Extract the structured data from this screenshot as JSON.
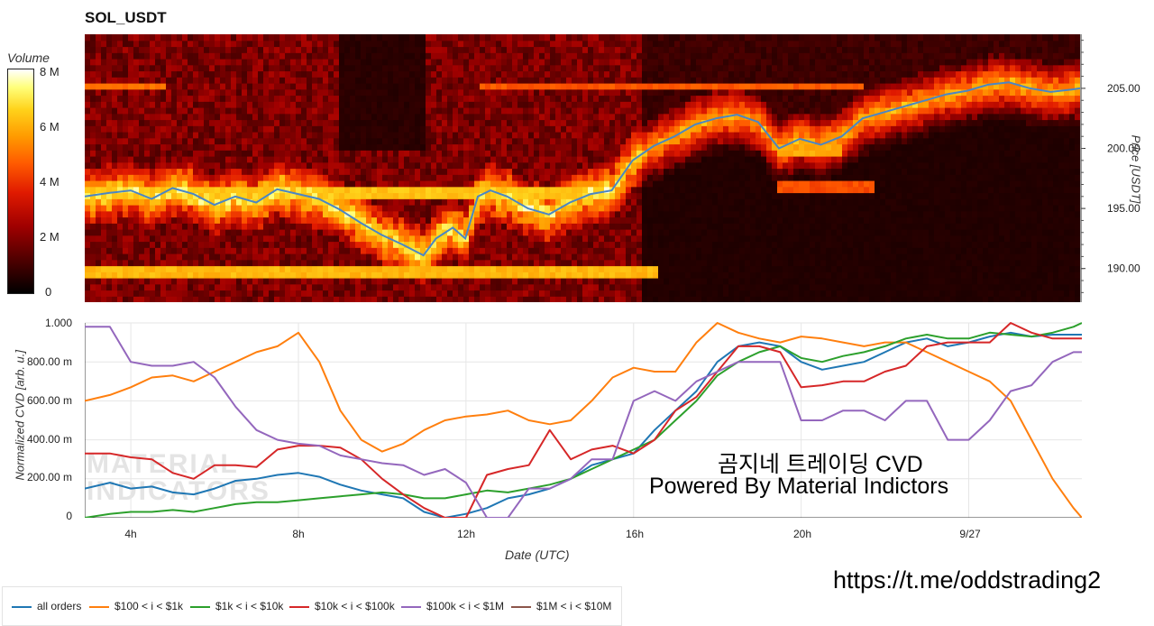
{
  "title": "SOL_USDT",
  "colorbar": {
    "title": "Volume",
    "ticks": [
      "8 M",
      "6 M",
      "4 M",
      "2 M",
      "0"
    ],
    "max": 8.5
  },
  "price_axis": {
    "label": "Price [USDT]",
    "ticks": [
      "205.00",
      "200.00",
      "195.00",
      "190.00"
    ]
  },
  "cvd_axis": {
    "label": "Normalized CVD [arb. u.]",
    "ticks": [
      "1.000",
      "800.00 m",
      "600.00 m",
      "400.00 m",
      "200.00 m",
      "0"
    ]
  },
  "x_axis": {
    "label": "Date (UTC)",
    "ticks": [
      "4h",
      "8h",
      "12h",
      "16h",
      "20h",
      "9/27"
    ]
  },
  "overlay_text": {
    "line1": "곰지네 트레이딩 CVD",
    "line2": "Powered By Material Indictors",
    "url": "https://t.me/oddstrading2"
  },
  "watermark": {
    "line1": "MATERIAL",
    "line2": "INDICATORS"
  },
  "legend": [
    {
      "label": "all orders",
      "color": "#1f77b4"
    },
    {
      "label": "$100 < i < $1k",
      "color": "#ff7f0e"
    },
    {
      "label": "$1k < i < $10k",
      "color": "#2ca02c"
    },
    {
      "label": "$10k < i < $100k",
      "color": "#d62728"
    },
    {
      "label": "$100k < i < $1M",
      "color": "#9467bd"
    },
    {
      "label": "$1M < i < $10M",
      "color": "#8c564b"
    }
  ],
  "chart_data": [
    {
      "type": "heatmap",
      "title": "SOL_USDT",
      "xlabel": "",
      "ylabel": "Price [USDT]",
      "colorbar_label": "Volume",
      "x_hours": [
        2.9,
        26.7
      ],
      "ylim": [
        187.2,
        209.5
      ],
      "price_line": {
        "x": [
          2.9,
          3.5,
          4.0,
          4.5,
          5.0,
          5.5,
          6.0,
          6.5,
          7.0,
          7.5,
          8.0,
          8.5,
          9.0,
          9.5,
          10.0,
          10.5,
          11.0,
          11.3,
          11.7,
          12.0,
          12.3,
          12.6,
          13.0,
          13.5,
          14.0,
          14.5,
          15.0,
          15.5,
          16.0,
          16.5,
          17.0,
          17.5,
          18.0,
          18.5,
          19.0,
          19.5,
          20.0,
          20.5,
          21.0,
          21.5,
          22.0,
          22.5,
          23.0,
          23.5,
          24.0,
          24.5,
          25.0,
          25.5,
          26.0,
          26.5,
          26.7
        ],
        "y": [
          196.0,
          196.3,
          196.5,
          195.8,
          196.7,
          196.2,
          195.3,
          196.0,
          195.5,
          196.6,
          196.2,
          195.8,
          194.9,
          193.8,
          192.8,
          192.0,
          191.1,
          192.5,
          193.4,
          192.5,
          196.0,
          196.5,
          196.0,
          195.0,
          194.5,
          195.5,
          196.2,
          196.5,
          199.0,
          200.2,
          201.0,
          202.0,
          202.5,
          202.8,
          202.2,
          200.0,
          200.8,
          200.3,
          201.0,
          202.5,
          203.0,
          203.5,
          204.0,
          204.5,
          204.8,
          205.3,
          205.5,
          205.0,
          204.7,
          204.9,
          205.0
        ]
      },
      "volume_bands": [
        {
          "price": 189.9,
          "volume": 6.8,
          "from_h": 2.9,
          "to_h": 16.6
        },
        {
          "price": 196.5,
          "volume": 7.0,
          "from_h": 2.9,
          "to_h": 15.5
        },
        {
          "price": 205.2,
          "volume": 5.6,
          "from_h": 2.9,
          "to_h": 4.9
        },
        {
          "price": 205.2,
          "volume": 5.2,
          "from_h": 12.4,
          "to_h": 21.5
        },
        {
          "price": 200.0,
          "volume": 6.5,
          "from_h": 19.5,
          "to_h": 21.0
        },
        {
          "price": 196.8,
          "volume": 5.0,
          "from_h": 19.5,
          "to_h": 21.8
        }
      ]
    },
    {
      "type": "line",
      "title": "",
      "xlabel": "Date (UTC)",
      "ylabel": "Normalized CVD [arb. u.]",
      "xlim": [
        2.9,
        26.7
      ],
      "ylim": [
        0,
        1.0
      ],
      "x": [
        2.9,
        3.5,
        4.0,
        4.5,
        5.0,
        5.5,
        6.0,
        6.5,
        7.0,
        7.5,
        8.0,
        8.5,
        9.0,
        9.5,
        10.0,
        10.5,
        11.0,
        11.5,
        12.0,
        12.5,
        13.0,
        13.5,
        14.0,
        14.5,
        15.0,
        15.5,
        16.0,
        16.5,
        17.0,
        17.5,
        18.0,
        18.5,
        19.0,
        19.5,
        20.0,
        20.5,
        21.0,
        21.5,
        22.0,
        22.5,
        23.0,
        23.5,
        24.0,
        24.5,
        25.0,
        25.5,
        26.0,
        26.5,
        26.7
      ],
      "series": [
        {
          "name": "all orders",
          "values": [
            0.15,
            0.18,
            0.15,
            0.16,
            0.13,
            0.12,
            0.15,
            0.19,
            0.2,
            0.22,
            0.23,
            0.21,
            0.17,
            0.14,
            0.12,
            0.1,
            0.03,
            0.0,
            0.02,
            0.05,
            0.1,
            0.12,
            0.15,
            0.2,
            0.27,
            0.3,
            0.33,
            0.45,
            0.55,
            0.65,
            0.8,
            0.88,
            0.9,
            0.88,
            0.8,
            0.76,
            0.78,
            0.8,
            0.85,
            0.9,
            0.92,
            0.88,
            0.9,
            0.93,
            0.95,
            0.93,
            0.94,
            0.94,
            0.94
          ]
        },
        {
          "name": "$100 < i < $1k",
          "values": [
            0.6,
            0.63,
            0.67,
            0.72,
            0.73,
            0.7,
            0.75,
            0.8,
            0.85,
            0.88,
            0.95,
            0.8,
            0.55,
            0.4,
            0.34,
            0.38,
            0.45,
            0.5,
            0.52,
            0.53,
            0.55,
            0.5,
            0.48,
            0.5,
            0.6,
            0.72,
            0.77,
            0.75,
            0.75,
            0.9,
            1.0,
            0.95,
            0.92,
            0.9,
            0.93,
            0.92,
            0.9,
            0.88,
            0.9,
            0.9,
            0.85,
            0.8,
            0.75,
            0.7,
            0.6,
            0.4,
            0.2,
            0.05,
            0.0
          ]
        },
        {
          "name": "$1k < i < $10k",
          "values": [
            0.0,
            0.02,
            0.03,
            0.03,
            0.04,
            0.03,
            0.05,
            0.07,
            0.08,
            0.08,
            0.09,
            0.1,
            0.11,
            0.12,
            0.13,
            0.12,
            0.1,
            0.1,
            0.12,
            0.14,
            0.13,
            0.15,
            0.17,
            0.2,
            0.25,
            0.3,
            0.35,
            0.4,
            0.5,
            0.6,
            0.73,
            0.8,
            0.85,
            0.88,
            0.82,
            0.8,
            0.83,
            0.85,
            0.88,
            0.92,
            0.94,
            0.92,
            0.92,
            0.95,
            0.94,
            0.93,
            0.95,
            0.98,
            1.0
          ]
        },
        {
          "name": "$10k < i < $100k",
          "values": [
            0.33,
            0.33,
            0.31,
            0.3,
            0.23,
            0.2,
            0.27,
            0.27,
            0.26,
            0.35,
            0.37,
            0.37,
            0.36,
            0.3,
            0.2,
            0.12,
            0.05,
            0.0,
            0.0,
            0.22,
            0.25,
            0.27,
            0.45,
            0.3,
            0.35,
            0.37,
            0.33,
            0.4,
            0.55,
            0.62,
            0.75,
            0.88,
            0.88,
            0.85,
            0.67,
            0.68,
            0.7,
            0.7,
            0.75,
            0.78,
            0.88,
            0.9,
            0.9,
            0.9,
            1.0,
            0.95,
            0.92,
            0.92,
            0.92
          ]
        },
        {
          "name": "$100k < i < $1M",
          "values": [
            0.98,
            0.98,
            0.8,
            0.78,
            0.78,
            0.8,
            0.72,
            0.57,
            0.45,
            0.4,
            0.38,
            0.37,
            0.32,
            0.3,
            0.28,
            0.27,
            0.22,
            0.25,
            0.18,
            0.0,
            0.0,
            0.15,
            0.15,
            0.2,
            0.3,
            0.3,
            0.6,
            0.65,
            0.6,
            0.7,
            0.75,
            0.8,
            0.8,
            0.8,
            0.5,
            0.5,
            0.55,
            0.55,
            0.5,
            0.6,
            0.6,
            0.4,
            0.4,
            0.5,
            0.65,
            0.68,
            0.8,
            0.85,
            0.85
          ]
        },
        {
          "name": "$1M < i < $10M",
          "values": [
            null,
            null,
            null,
            null,
            null,
            null,
            null,
            null,
            null,
            null,
            null,
            null,
            null,
            null,
            null,
            null,
            null,
            null,
            null,
            null,
            null,
            null,
            null,
            null,
            null,
            null,
            null,
            null,
            null,
            null,
            null,
            null,
            null,
            null,
            null,
            null,
            null,
            null,
            null,
            null,
            null,
            null,
            null,
            null,
            null,
            null,
            null,
            null,
            null
          ]
        }
      ]
    }
  ]
}
